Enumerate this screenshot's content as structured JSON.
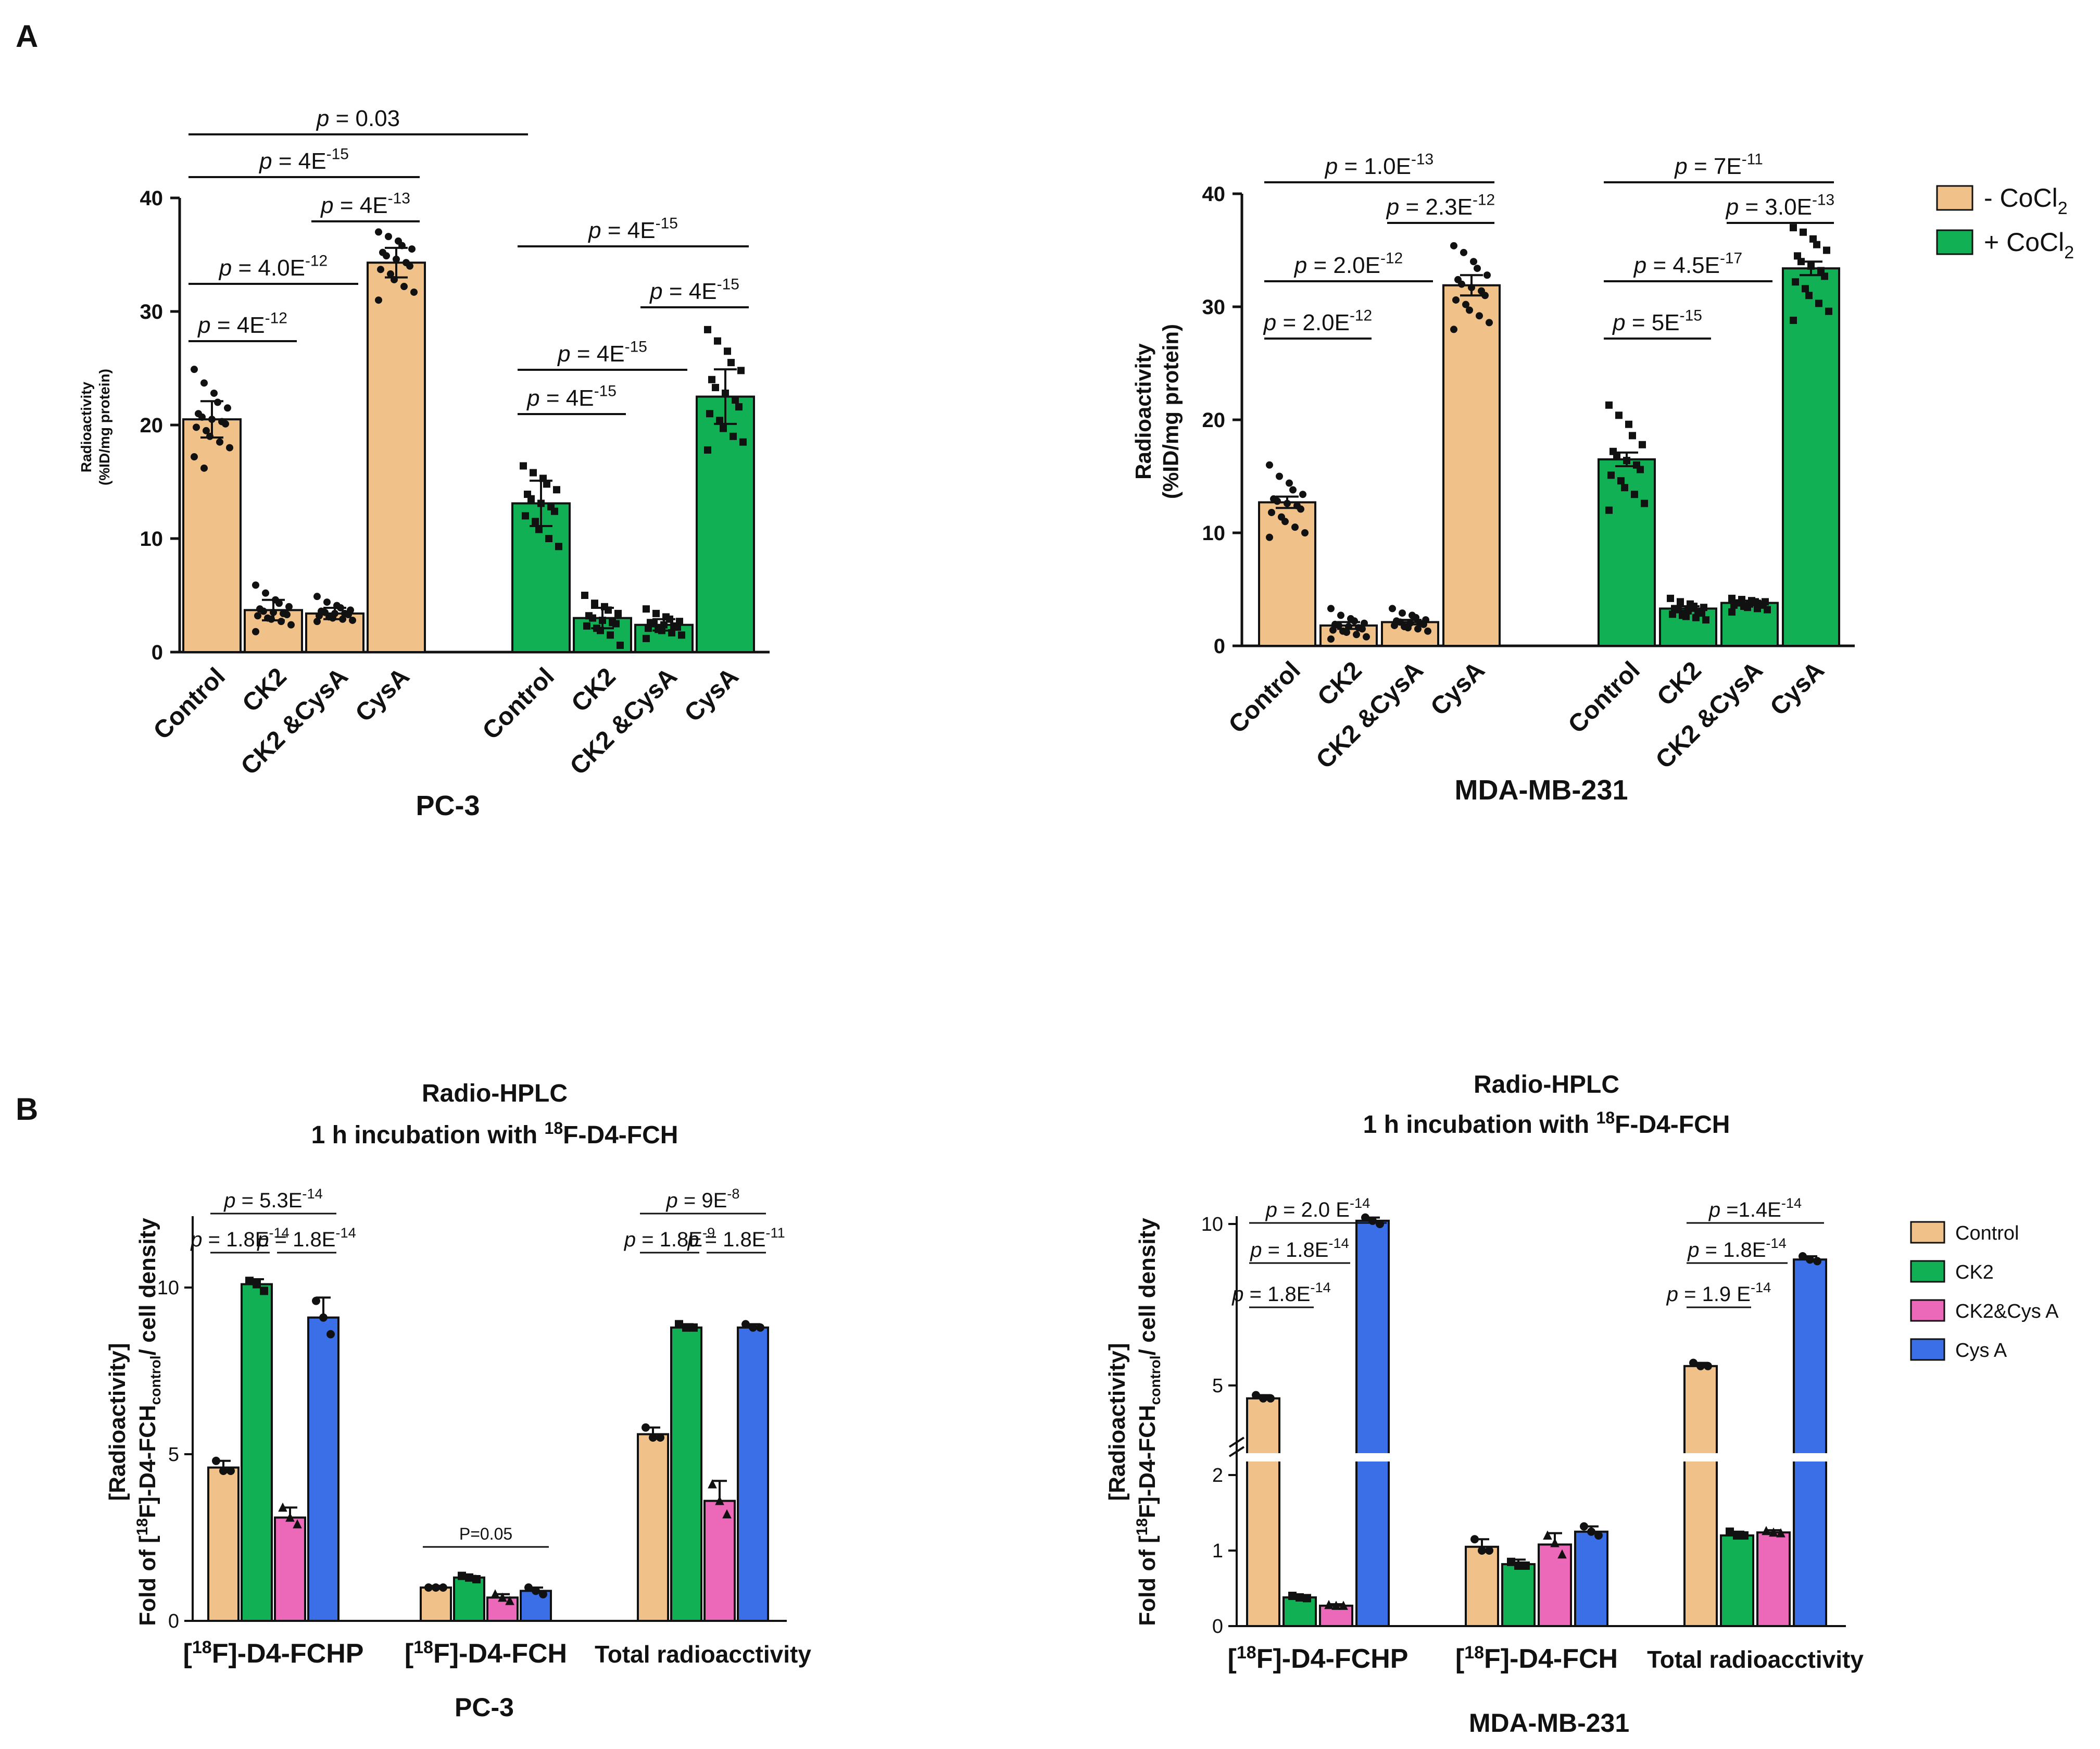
{
  "panels": {
    "A": "A",
    "B": "B"
  },
  "colors": {
    "minus_cocl2": "#f0c28a",
    "plus_cocl2": "#12b055",
    "control": "#f0c28a",
    "ck2": "#12b055",
    "ck2cysa": "#ec68b8",
    "cysa": "#3a6fe8"
  },
  "legend_A": [
    {
      "label": "- CoCl",
      "sub": "2",
      "color": "#f0c28a"
    },
    {
      "label": "+ CoCl",
      "sub": "2",
      "color": "#12b055"
    }
  ],
  "legend_B": [
    {
      "label": "Control",
      "color": "#f0c28a"
    },
    {
      "label": "CK2",
      "color": "#12b055"
    },
    {
      "label": "CK2&Cys A",
      "color": "#ec68b8"
    },
    {
      "label": "Cys A",
      "color": "#3a6fe8"
    }
  ],
  "chart_data": [
    {
      "id": "A1",
      "type": "bar",
      "title": "",
      "xlabel": "PC-3",
      "ylabel": [
        "Radioactivity",
        "(%ID/mg protein)"
      ],
      "ylim": [
        0,
        40
      ],
      "yticks": [
        0,
        10,
        20,
        30,
        40
      ],
      "categories": [
        "Control",
        "CK2",
        "CK2 &CysA",
        "CysA",
        "Control",
        "CK2",
        "CK2 &CysA",
        "CysA"
      ],
      "values": [
        20.5,
        3.7,
        3.4,
        34.3,
        13.1,
        3.0,
        2.4,
        22.5
      ],
      "errors": [
        1.6,
        0.9,
        0.5,
        1.3,
        2.0,
        0.9,
        0.5,
        2.4
      ],
      "groups": [
        "minus_cocl2",
        "minus_cocl2",
        "minus_cocl2",
        "minus_cocl2",
        "plus_cocl2",
        "plus_cocl2",
        "plus_cocl2",
        "plus_cocl2"
      ],
      "points": [
        [
          24.9,
          23.7,
          22.8,
          22.0,
          21.5,
          21.0,
          20.7,
          20.5,
          20.3,
          20.1,
          19.8,
          19.5,
          19.0,
          18.5,
          18.0,
          17.2,
          16.2
        ],
        [
          5.9,
          5.2,
          4.6,
          4.3,
          4.0,
          3.8,
          3.6,
          3.5,
          3.4,
          3.3,
          3.2,
          3.0,
          2.9,
          2.7,
          2.4,
          1.8
        ],
        [
          4.9,
          4.4,
          4.1,
          3.9,
          3.7,
          3.6,
          3.5,
          3.4,
          3.4,
          3.3,
          3.2,
          3.1,
          3.0,
          2.9,
          2.8,
          2.7
        ],
        [
          37.0,
          36.6,
          36.2,
          35.8,
          35.5,
          35.2,
          34.9,
          34.6,
          34.3,
          34.0,
          33.7,
          33.3,
          32.8,
          32.2,
          31.7,
          31.0
        ],
        [
          16.4,
          15.8,
          15.3,
          14.8,
          14.3,
          13.9,
          13.5,
          13.1,
          12.8,
          12.4,
          12.0,
          11.5,
          10.8,
          10.0,
          9.3
        ],
        [
          5.0,
          4.3,
          4.0,
          3.7,
          3.4,
          3.2,
          3.0,
          2.8,
          2.6,
          2.5,
          2.3,
          2.1,
          1.9,
          1.5,
          0.6
        ],
        [
          3.8,
          3.4,
          3.1,
          2.9,
          2.7,
          2.6,
          2.5,
          2.4,
          2.3,
          2.2,
          2.1,
          2.0,
          1.9,
          1.7,
          1.5,
          1.2
        ],
        [
          28.4,
          27.4,
          26.5,
          25.5,
          24.8,
          24.0,
          23.3,
          22.8,
          22.2,
          21.6,
          21.0,
          20.4,
          19.7,
          19.0,
          18.5,
          17.8
        ]
      ],
      "significance": [
        {
          "from": 0,
          "to": 4,
          "label": "p = 0.03",
          "level": 9
        },
        {
          "from": 0,
          "to": 3,
          "label": "p = 4E",
          "sup": "-15",
          "level": 8
        },
        {
          "from": 2,
          "to": 3,
          "label": "p = 4E",
          "sup": "-13",
          "level": 7
        },
        {
          "from": 0,
          "to": 2,
          "label": "p = 4.0E",
          "sup": "-12",
          "level": 6
        },
        {
          "from": 0,
          "to": 1,
          "label": "p = 4E",
          "sup": "-12",
          "level": 5
        },
        {
          "from": 4,
          "to": 7,
          "label": "p = 4E",
          "sup": "-15",
          "level": 7
        },
        {
          "from": 6,
          "to": 7,
          "label": "p = 4E",
          "sup": "-15",
          "level": 6
        },
        {
          "from": 4,
          "to": 6,
          "label": "p = 4E",
          "sup": "-15",
          "level": 5
        },
        {
          "from": 4,
          "to": 5,
          "label": "p = 4E",
          "sup": "-15",
          "level": 4
        }
      ]
    },
    {
      "id": "A2",
      "type": "bar",
      "title": "",
      "xlabel": "MDA-MB-231",
      "ylabel": [
        "Radioactivity",
        "(%ID/mg protein)"
      ],
      "ylim": [
        0,
        40
      ],
      "yticks": [
        0,
        10,
        20,
        30,
        40
      ],
      "categories": [
        "Control",
        "CK2",
        "CK2 &CysA",
        "CysA",
        "Control",
        "CK2",
        "CK2 &CysA",
        "CysA"
      ],
      "values": [
        12.7,
        1.8,
        2.1,
        31.9,
        16.5,
        3.3,
        3.8,
        33.4
      ],
      "errors": [
        0.5,
        0.3,
        0.2,
        0.9,
        0.6,
        0.2,
        0.2,
        0.6
      ],
      "groups": [
        "minus_cocl2",
        "minus_cocl2",
        "minus_cocl2",
        "minus_cocl2",
        "plus_cocl2",
        "plus_cocl2",
        "plus_cocl2",
        "plus_cocl2"
      ],
      "points": [
        [
          16.0,
          15.0,
          14.4,
          13.8,
          13.4,
          13.0,
          12.8,
          12.6,
          12.4,
          12.1,
          11.8,
          11.4,
          11.0,
          10.5,
          10.0,
          9.6
        ],
        [
          3.3,
          2.7,
          2.4,
          2.2,
          2.0,
          1.9,
          1.8,
          1.7,
          1.6,
          1.5,
          1.4,
          1.3,
          1.2,
          1.0,
          0.8,
          0.6
        ],
        [
          3.3,
          2.9,
          2.7,
          2.5,
          2.3,
          2.2,
          2.1,
          2.0,
          2.0,
          1.9,
          1.8,
          1.7,
          1.6,
          1.5,
          1.3
        ],
        [
          35.4,
          34.8,
          34.0,
          33.4,
          32.8,
          32.4,
          32.0,
          31.7,
          31.4,
          31.0,
          30.6,
          30.2,
          29.7,
          29.2,
          28.6,
          28.0
        ],
        [
          21.3,
          20.4,
          19.6,
          18.6,
          17.8,
          17.2,
          16.8,
          16.4,
          16.0,
          15.6,
          15.1,
          14.6,
          14.0,
          13.4,
          12.6,
          12.0
        ],
        [
          4.2,
          3.9,
          3.7,
          3.5,
          3.4,
          3.3,
          3.2,
          3.1,
          3.0,
          2.9,
          2.8,
          2.7,
          2.6,
          2.5,
          2.3
        ],
        [
          4.2,
          4.1,
          4.0,
          3.9,
          3.9,
          3.8,
          3.8,
          3.7,
          3.7,
          3.6,
          3.6,
          3.5,
          3.4,
          3.3,
          3.2,
          3.0
        ],
        [
          37.0,
          36.6,
          36.0,
          35.5,
          35.0,
          34.5,
          34.0,
          33.6,
          33.2,
          32.7,
          32.2,
          31.6,
          31.0,
          30.3,
          29.6,
          28.8
        ]
      ],
      "significance": [
        {
          "from": 0,
          "to": 3,
          "label": "p = 1.0E",
          "sup": "-13",
          "level": 8
        },
        {
          "from": 2,
          "to": 3,
          "label": "p = 2.3E",
          "sup": "-12",
          "level": 7
        },
        {
          "from": 0,
          "to": 2,
          "label": "p = 2.0E",
          "sup": "-12",
          "level": 6
        },
        {
          "from": 0,
          "to": 1,
          "label": "p = 2.0E",
          "sup": "-12",
          "level": 5
        },
        {
          "from": 4,
          "to": 7,
          "label": "p = 7E",
          "sup": "-11",
          "level": 8
        },
        {
          "from": 6,
          "to": 7,
          "label": "p = 3.0E",
          "sup": "-13",
          "level": 7
        },
        {
          "from": 4,
          "to": 6,
          "label": "p = 4.5E",
          "sup": "-17",
          "level": 6
        },
        {
          "from": 4,
          "to": 5,
          "label": "p = 5E",
          "sup": "-15",
          "level": 5
        }
      ]
    },
    {
      "id": "B1",
      "type": "bar",
      "title": [
        "Radio-HPLC",
        "1 h incubation with ",
        "18",
        "F-D4-FCH"
      ],
      "xlabel": "PC-3",
      "ylabel": [
        "[Radioactivity]",
        "Fold of [",
        "18",
        "F]-D4-FCH",
        "control",
        "/ cell density"
      ],
      "ylim": [
        0,
        12
      ],
      "yticks": [
        0,
        5,
        10
      ],
      "categories": [
        {
          "pre": "[",
          "sup": "18",
          "post": "F]-D4-FCHP"
        },
        {
          "pre": "[",
          "sup": "18",
          "post": "F]-D4-FCH"
        },
        {
          "pre": "Total radioacctivity",
          "sup": "",
          "post": ""
        }
      ],
      "series": [
        {
          "name": "Control",
          "values": [
            4.6,
            1.0,
            5.6
          ],
          "errors": [
            0.2,
            0.05,
            0.2
          ],
          "points": [
            [
              4.8,
              4.5,
              4.5
            ],
            [
              1.0,
              1.0,
              1.0
            ],
            [
              5.8,
              5.5,
              5.5
            ]
          ]
        },
        {
          "name": "CK2",
          "values": [
            10.1,
            1.3,
            8.8
          ],
          "errors": [
            0.15,
            0.05,
            0.1
          ],
          "points": [
            [
              10.2,
              10.1,
              9.9
            ],
            [
              1.35,
              1.3,
              1.25
            ],
            [
              8.9,
              8.8,
              8.8
            ]
          ]
        },
        {
          "name": "CK2&Cys A",
          "values": [
            3.1,
            0.7,
            3.6
          ],
          "errors": [
            0.3,
            0.1,
            0.6
          ],
          "points": [
            [
              3.4,
              3.1,
              2.9
            ],
            [
              0.8,
              0.7,
              0.6
            ],
            [
              4.1,
              3.6,
              3.2
            ]
          ]
        },
        {
          "name": "Cys A",
          "values": [
            9.1,
            0.9,
            8.8
          ],
          "errors": [
            0.6,
            0.1,
            0.1
          ],
          "points": [
            [
              9.6,
              9.1,
              8.6
            ],
            [
              1.0,
              0.9,
              0.8
            ],
            [
              8.9,
              8.8,
              8.8
            ]
          ]
        }
      ],
      "significance": [
        {
          "from": [
            0,
            0
          ],
          "to": [
            0,
            3
          ],
          "label": "p = 5.3E",
          "sup": "-14",
          "level": 11
        },
        {
          "from": [
            0,
            0
          ],
          "to": [
            0,
            1
          ],
          "label": "p = 1.8E",
          "sup": "-14",
          "level": 10
        },
        {
          "from": [
            0,
            2
          ],
          "to": [
            0,
            3
          ],
          "label": "p = 1.8E",
          "sup": "-14",
          "level": 10
        },
        {
          "from": [
            2,
            0
          ],
          "to": [
            2,
            3
          ],
          "label": "p = 9E",
          "sup": "-8",
          "level": 11
        },
        {
          "from": [
            2,
            0
          ],
          "to": [
            2,
            1
          ],
          "label": "p = 1.8E",
          "sup": "-9",
          "level": 10
        },
        {
          "from": [
            2,
            2
          ],
          "to": [
            2,
            3
          ],
          "label": "p = 1.8E",
          "sup": "-11",
          "level": 10
        },
        {
          "from": [
            1,
            0
          ],
          "to": [
            1,
            3
          ],
          "label": "P=0.05",
          "sup": "",
          "level": 2
        }
      ]
    },
    {
      "id": "B2",
      "type": "bar",
      "title": [
        "Radio-HPLC",
        "1 h incubation with ",
        "18",
        "F-D4-FCH"
      ],
      "xlabel": "MDA-MB-231",
      "ylabel": [
        "[Radioactivity]",
        "Fold of [",
        "18",
        "F]-D4-FCH",
        "control",
        "/ cell density"
      ],
      "axis_break": [
        2,
        2.5
      ],
      "yticks": [
        0,
        1,
        2,
        5,
        10
      ],
      "categories": [
        {
          "pre": "[",
          "sup": "18",
          "post": "F]-D4-FCHP"
        },
        {
          "pre": "[",
          "sup": "18",
          "post": "F]-D4-FCH"
        },
        {
          "pre": "Total radioacctivity",
          "sup": "",
          "post": ""
        }
      ],
      "series": [
        {
          "name": "Control",
          "values": [
            4.6,
            1.05,
            5.6
          ],
          "errors": [
            0.1,
            0.1,
            0.1
          ],
          "points": [
            [
              4.7,
              4.6,
              4.6
            ],
            [
              1.15,
              1.0,
              1.0
            ],
            [
              5.7,
              5.6,
              5.6
            ]
          ]
        },
        {
          "name": "CK2",
          "values": [
            0.38,
            0.82,
            1.2
          ],
          "errors": [
            0.03,
            0.06,
            0.05
          ],
          "points": [
            [
              0.4,
              0.38,
              0.37
            ],
            [
              0.85,
              0.8,
              0.8
            ],
            [
              1.25,
              1.2,
              1.2
            ]
          ]
        },
        {
          "name": "CK2&Cys A",
          "values": [
            0.27,
            1.08,
            1.24
          ],
          "errors": [
            0.02,
            0.15,
            0.03
          ],
          "points": [
            [
              0.28,
              0.27,
              0.27
            ],
            [
              1.2,
              1.1,
              0.95
            ],
            [
              1.26,
              1.24,
              1.23
            ]
          ]
        },
        {
          "name": "Cys A",
          "values": [
            10.1,
            1.25,
            8.9
          ],
          "errors": [
            0.1,
            0.07,
            0.1
          ],
          "points": [
            [
              10.2,
              10.1,
              10.0
            ],
            [
              1.32,
              1.25,
              1.2
            ],
            [
              9.0,
              8.9,
              8.85
            ]
          ]
        }
      ],
      "significance": [
        {
          "from": [
            0,
            0
          ],
          "to": [
            0,
            3
          ],
          "label": "p = 2.0 E",
          "sup": "-14",
          "level": 12
        },
        {
          "from": [
            0,
            0
          ],
          "to": [
            0,
            2
          ],
          "label": "p = 1.8E",
          "sup": "-14",
          "level": 11
        },
        {
          "from": [
            0,
            0
          ],
          "to": [
            0,
            1
          ],
          "label": "p = 1.8E",
          "sup": "-14",
          "level": 10
        },
        {
          "from": [
            2,
            0
          ],
          "to": [
            2,
            3
          ],
          "label": "p =1.4E",
          "sup": "-14",
          "level": 12
        },
        {
          "from": [
            2,
            0
          ],
          "to": [
            2,
            2
          ],
          "label": "p = 1.8E",
          "sup": "-14",
          "level": 11
        },
        {
          "from": [
            2,
            0
          ],
          "to": [
            2,
            1
          ],
          "label": "p = 1.9 E",
          "sup": "-14",
          "level": 10
        }
      ]
    }
  ]
}
